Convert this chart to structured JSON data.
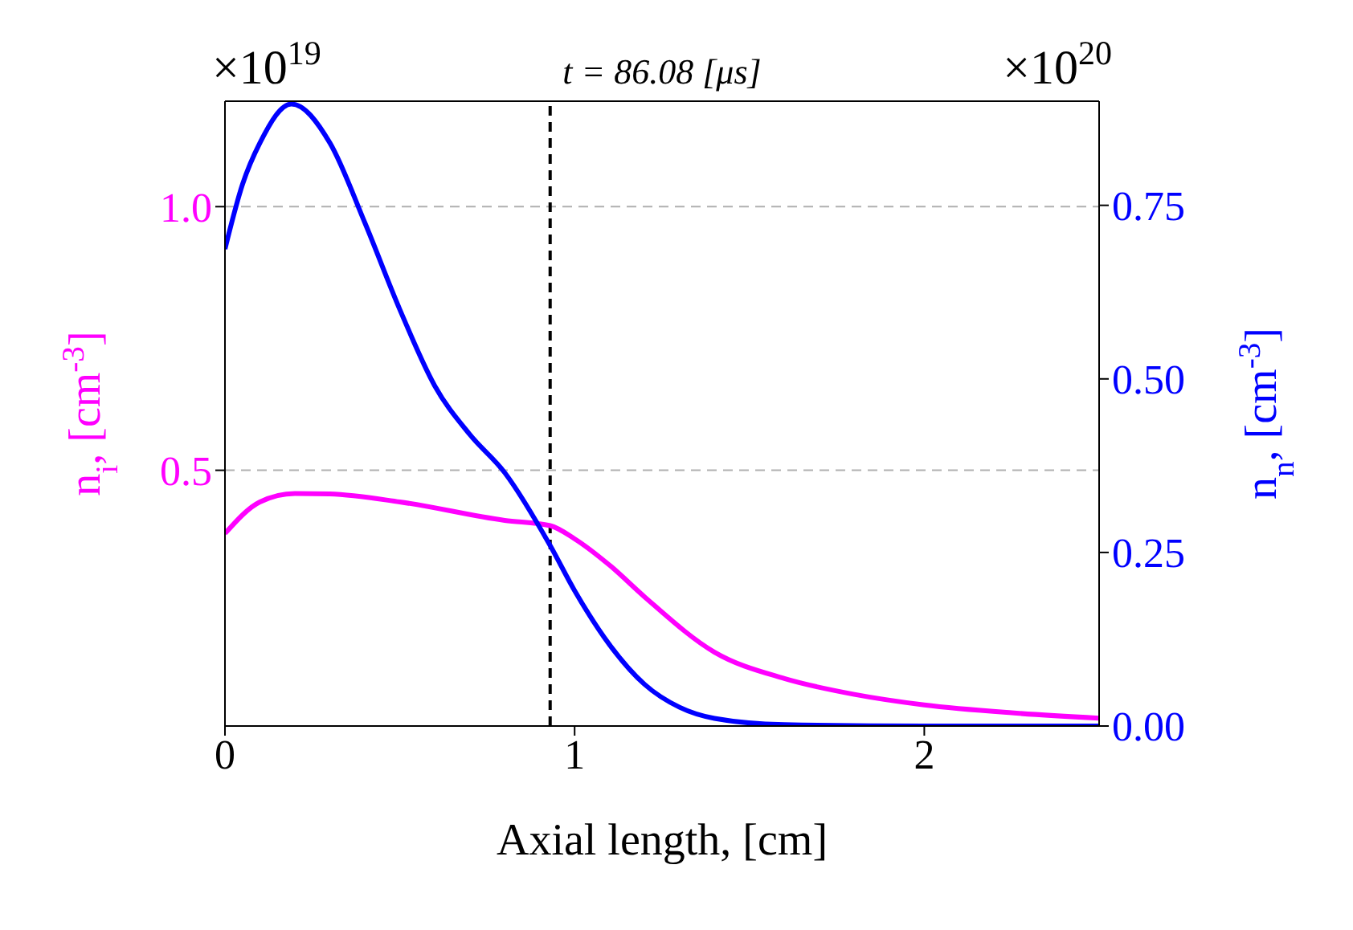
{
  "chart_data": {
    "type": "line",
    "title": "t = 86.08 [μs]",
    "xlabel": "Axial length, [cm]",
    "ylabel": "n$_{i}$, [cm$^{-3}$]",
    "y2label": "n$_{n}$, [cm$^{-3}$]",
    "annotations": [
      "×10$^{19}$",
      "×10$^{20}$"
    ],
    "xlim": [
      0,
      2.5
    ],
    "xticks": [
      0,
      1,
      2
    ],
    "ylim": [
      0.015,
      1.2
    ],
    "yticks": [
      {
        "value": 0.5,
        "label": "0.5"
      },
      {
        "value": 1.0,
        "label": "1.0"
      }
    ],
    "y2lim": [
      0,
      0.9
    ],
    "y2ticks": [
      {
        "value": 0,
        "label": "0.00"
      },
      {
        "value": 0.25,
        "label": "0.25"
      },
      {
        "value": 0.5,
        "label": "0.50"
      },
      {
        "value": 0.75,
        "label": "0.75"
      }
    ],
    "grid": true,
    "line_style": "solid",
    "marker": "none",
    "ref_lines": [
      {
        "axis": "x",
        "value": 0.93,
        "color": "#000000",
        "line_style": "dashed"
      }
    ],
    "series": [
      {
        "color": "#ff00ff",
        "x": [
          0,
          0.1,
          0.2,
          0.3,
          0.5,
          0.8,
          0.93,
          1.0,
          1.1,
          1.2,
          1.4,
          1.6,
          1.8,
          2.0,
          2.25,
          2.5
        ],
        "values": [
          0.38,
          0.44,
          0.456,
          0.455,
          0.44,
          0.405,
          0.395,
          0.37,
          0.32,
          0.26,
          0.155,
          0.105,
          0.075,
          0.055,
          0.04,
          0.03
        ]
      },
      {
        "color": "#0000ff",
        "axis": "y2",
        "x": [
          0,
          0.05,
          0.1,
          0.19,
          0.3,
          0.4,
          0.5,
          0.6,
          0.7,
          0.8,
          0.93,
          1.0,
          1.1,
          1.2,
          1.3,
          1.4,
          1.6,
          2.0,
          2.5
        ],
        "values": [
          0.687,
          0.78,
          0.84,
          0.896,
          0.84,
          0.725,
          0.6,
          0.49,
          0.42,
          0.365,
          0.26,
          0.195,
          0.117,
          0.06,
          0.027,
          0.011,
          0.002,
          0,
          0
        ]
      }
    ]
  }
}
